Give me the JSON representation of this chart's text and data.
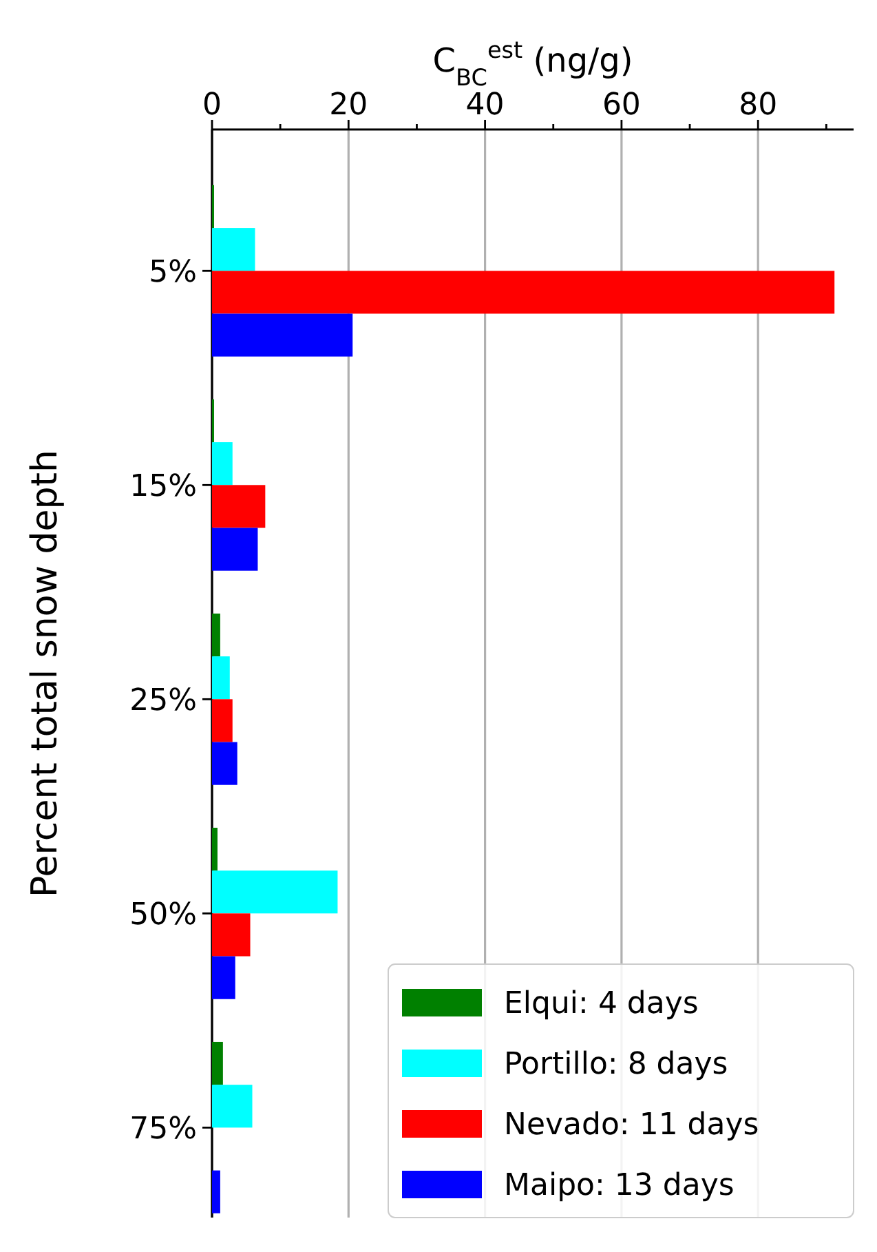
{
  "chart_data": {
    "type": "bar",
    "orientation": "horizontal",
    "xlabel": "C$_{BC}$$^{est}$ (ng/g)",
    "ylabel": "Percent total snow depth",
    "categories": [
      "5%",
      "15%",
      "25%",
      "50%",
      "75%"
    ],
    "series": [
      {
        "name": "Elqui: 4 days",
        "color": "#008000",
        "values": [
          0.3,
          0.3,
          1.2,
          0.8,
          1.6
        ]
      },
      {
        "name": "Portillo: 8 days",
        "color": "#00ffff",
        "values": [
          6.3,
          3.0,
          2.6,
          18.4,
          5.9
        ]
      },
      {
        "name": "Nevado: 11 days",
        "color": "#ff0000",
        "values": [
          91.2,
          7.8,
          3.0,
          5.6,
          null
        ]
      },
      {
        "name": "Maipo: 13 days",
        "color": "#0000ff",
        "values": [
          20.6,
          6.7,
          3.7,
          3.4,
          1.2
        ]
      }
    ],
    "xlim": [
      0,
      94
    ],
    "xticks": [
      0,
      {
        "value": 10,
        "label": null
      },
      20,
      {
        "value": 30,
        "label": null
      },
      40,
      {
        "value": 50,
        "label": null
      },
      60,
      {
        "value": 70,
        "label": null
      },
      80,
      {
        "value": 90,
        "label": null
      }
    ],
    "grid": "x",
    "legend": "bottom right"
  }
}
